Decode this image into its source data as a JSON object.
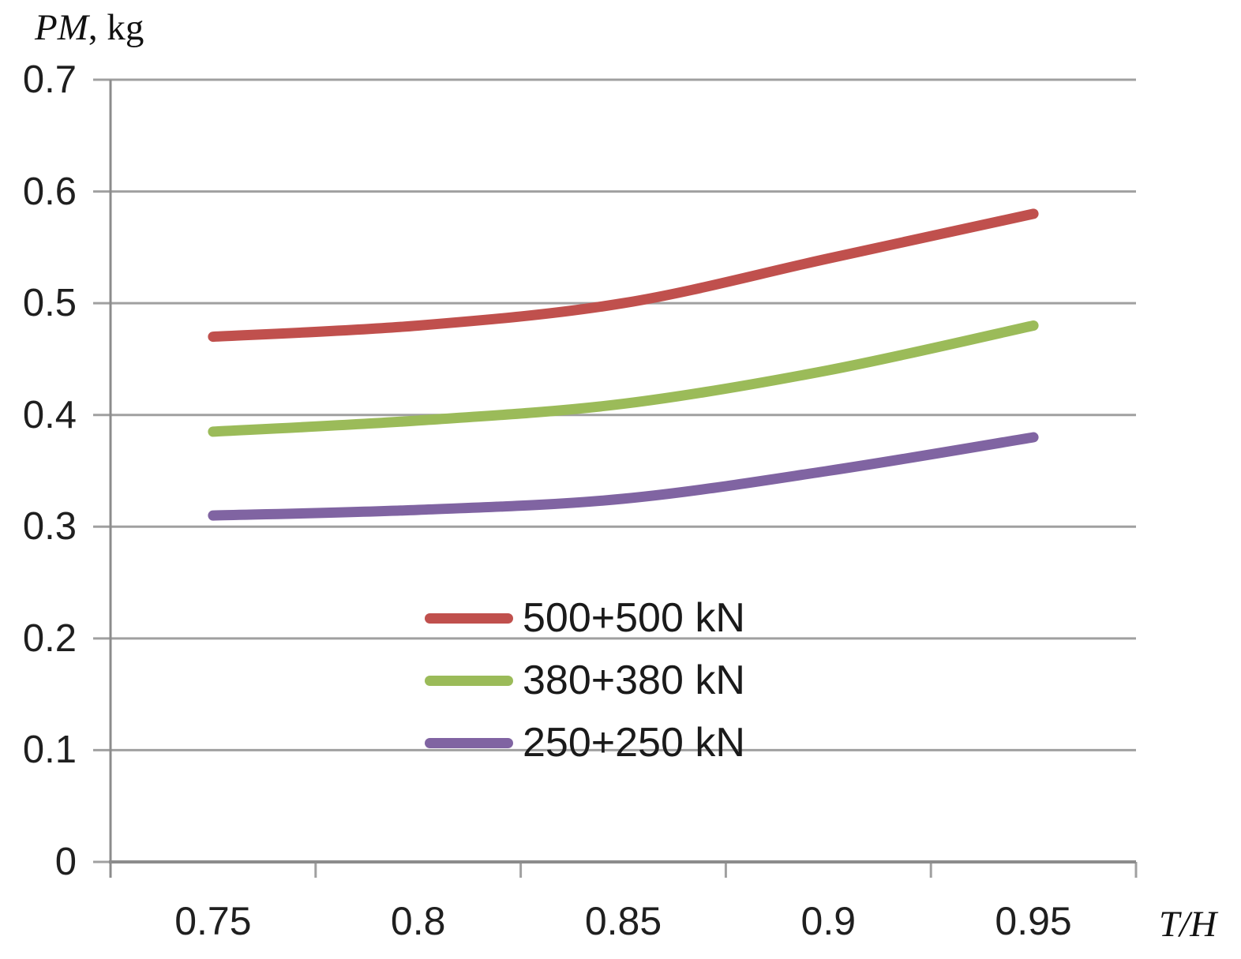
{
  "figure": {
    "background": "#ffffff",
    "text_color": "#1f1f1f",
    "gridline_color": "#a0a0a0",
    "axis_line_color": "#8c8c8c",
    "y_axis_title_main": "PM",
    "y_axis_title_unit": ", kg",
    "x_axis_title": "T/H"
  },
  "chart_data": {
    "type": "line",
    "smooth": true,
    "grid": true,
    "legend_position": "inside-bottom-center",
    "title": "",
    "xlabel": "T/H",
    "ylabel": "PM, kg",
    "x": [
      0.75,
      0.8,
      0.85,
      0.9,
      0.95
    ],
    "x_tick_labels": [
      "0.75",
      "0.8",
      "0.85",
      "0.9",
      "0.95"
    ],
    "ylim": [
      0,
      0.7
    ],
    "y_ticks": [
      0,
      0.1,
      0.2,
      0.3,
      0.4,
      0.5,
      0.6,
      0.7
    ],
    "y_tick_labels": [
      "0",
      "0.1",
      "0.2",
      "0.3",
      "0.4",
      "0.5",
      "0.6",
      "0.7"
    ],
    "series": [
      {
        "name": "500+500 kN",
        "color": "#C0504D",
        "values": [
          0.47,
          0.48,
          0.5,
          0.54,
          0.58
        ]
      },
      {
        "name": "380+380 kN",
        "color": "#9BBB59",
        "values": [
          0.385,
          0.395,
          0.41,
          0.44,
          0.48
        ]
      },
      {
        "name": "250+250 kN",
        "color": "#8064A2",
        "values": [
          0.31,
          0.315,
          0.325,
          0.35,
          0.38
        ]
      }
    ]
  }
}
